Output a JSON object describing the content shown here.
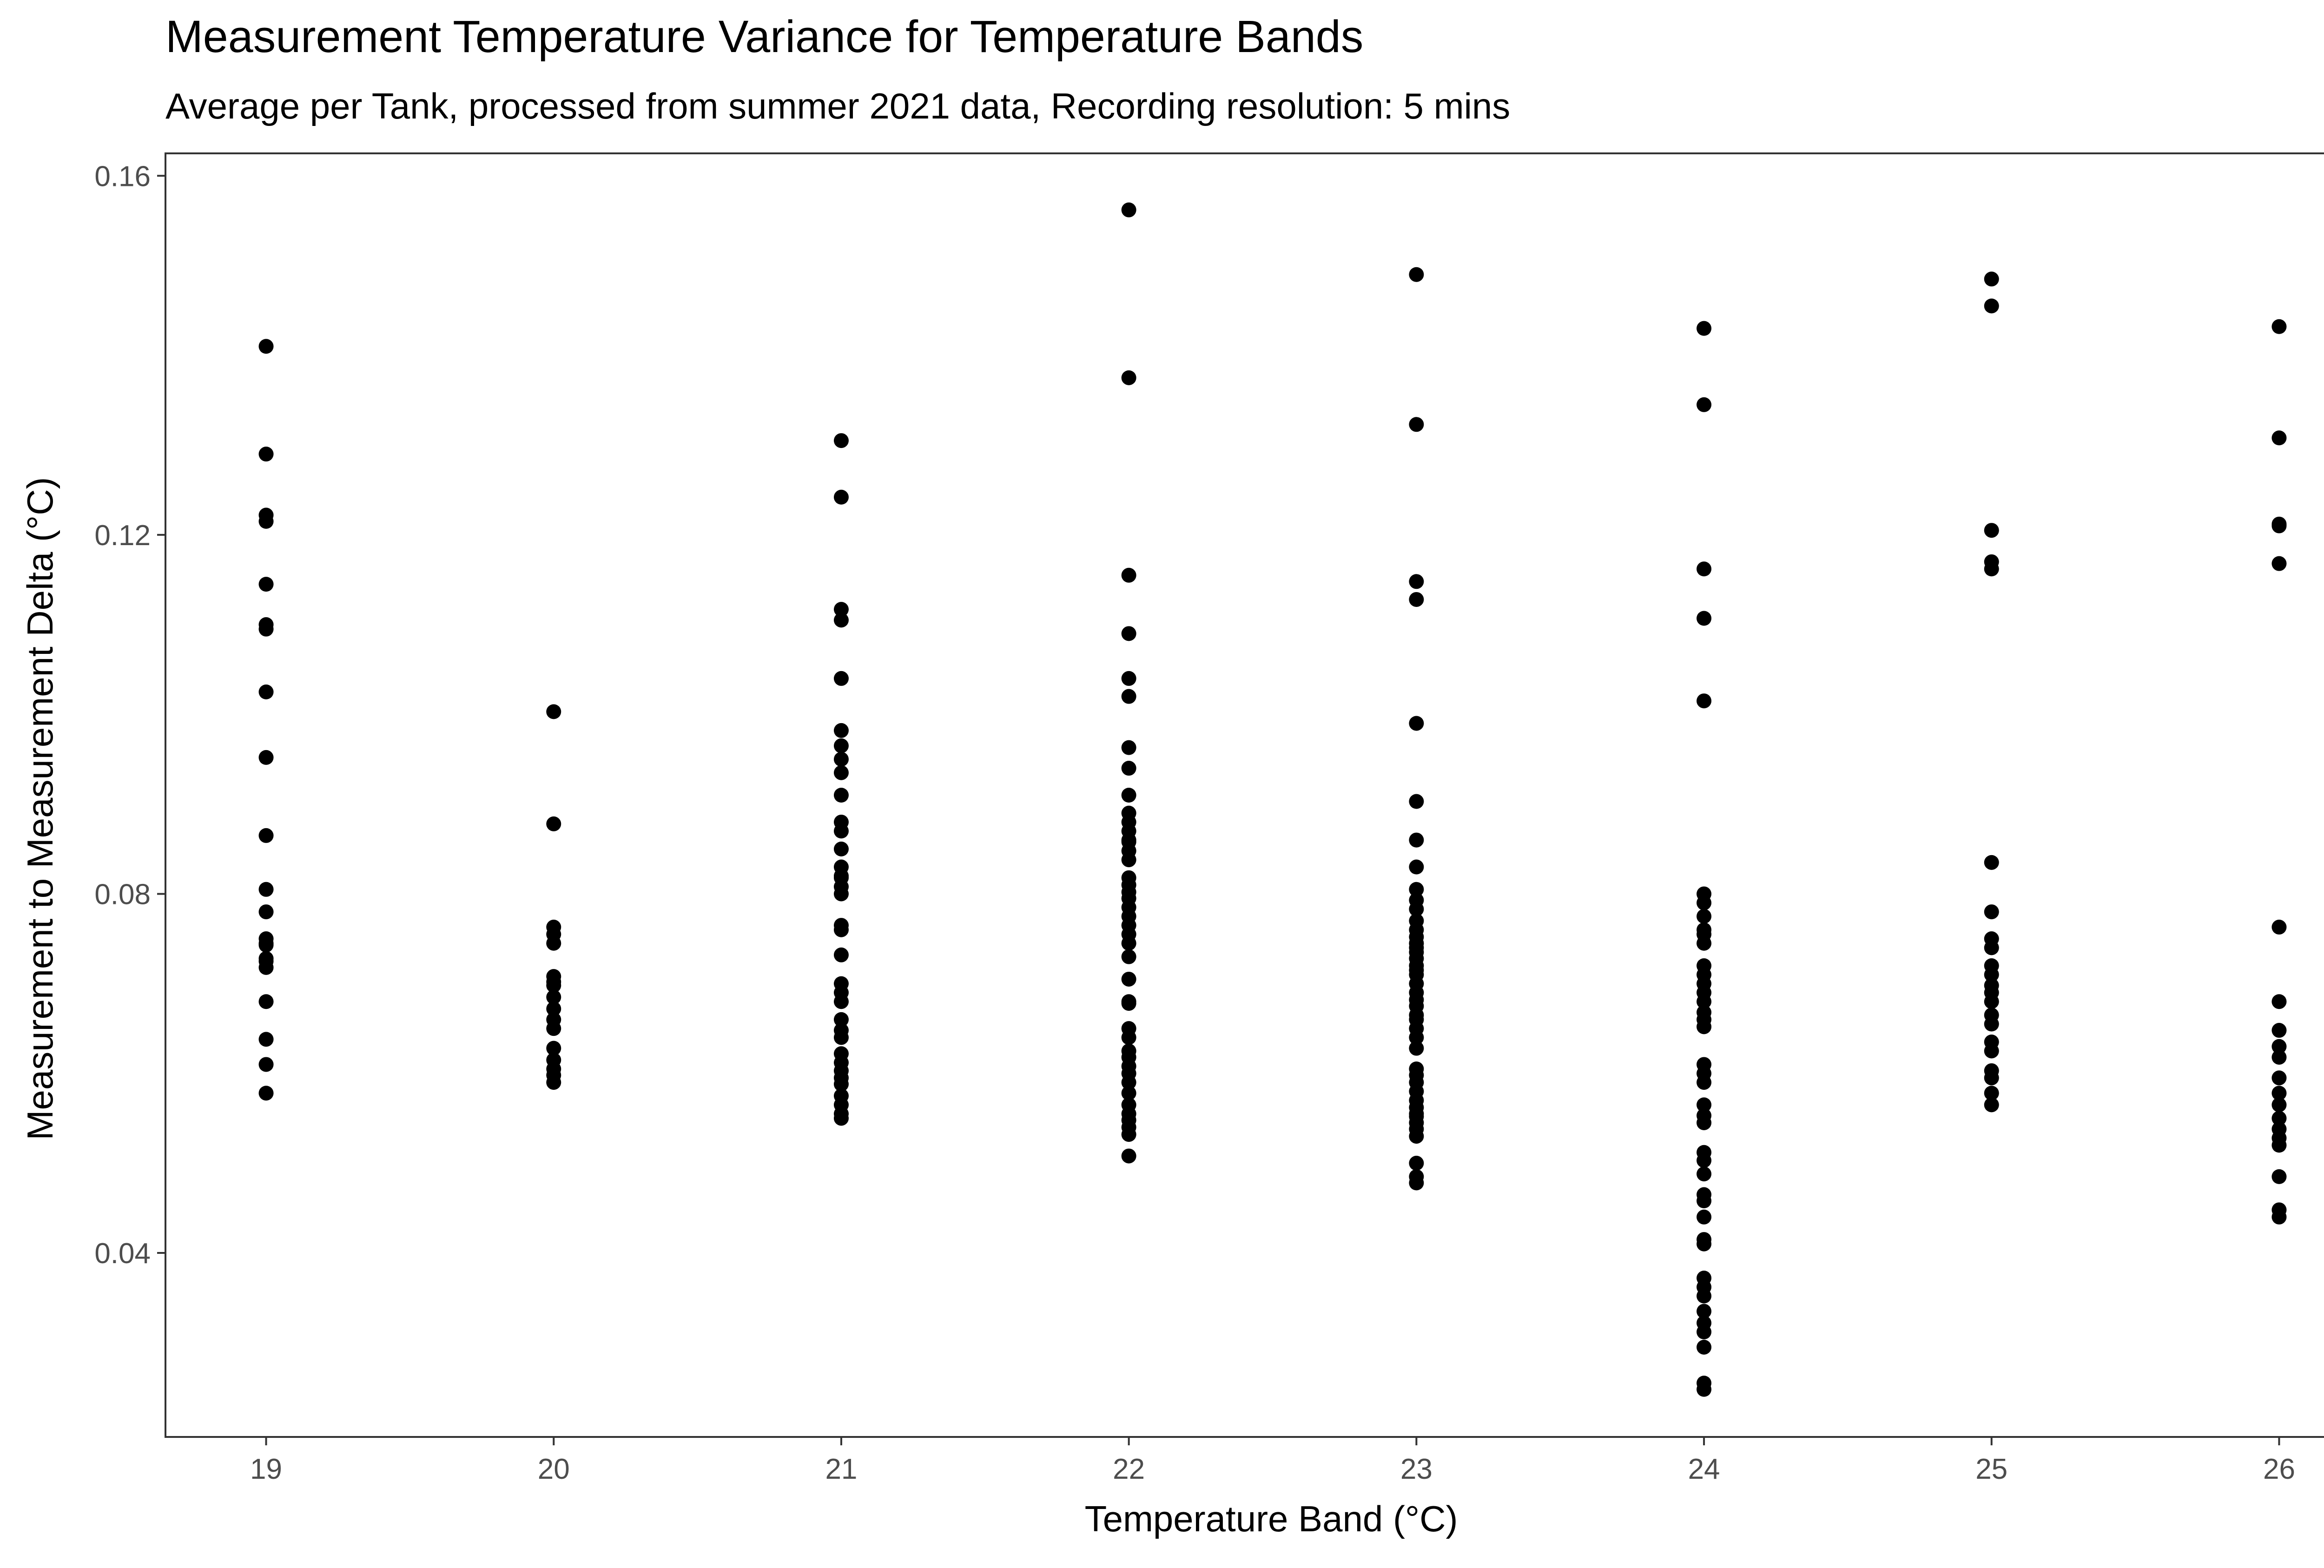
{
  "chart_data": {
    "type": "scatter",
    "title": "Measurement Temperature Variance for Temperature Bands",
    "subtitle": "Average per Tank, processed from summer 2021 data, Recording resolution: 5 mins",
    "xlabel": "Temperature Band (°C)",
    "ylabel": "Measurement to Measurement Delta (°C)",
    "xlim": [
      18.65,
      26.35
    ],
    "ylim": [
      0.0195,
      0.1625
    ],
    "x_ticks": [
      19,
      20,
      21,
      22,
      23,
      24,
      25,
      26
    ],
    "y_ticks": [
      0.04,
      0.08,
      0.12,
      0.16
    ],
    "y_tick_labels": [
      "0.04",
      "0.08",
      "0.12",
      "0.16"
    ],
    "x_tick_labels": [
      "19",
      "20",
      "21",
      "22",
      "23",
      "24",
      "25",
      "26"
    ],
    "grid": false,
    "legend": "none",
    "colors": {
      "point": "#000000",
      "panel_border": "#333333",
      "tick_text": "#4d4d4d"
    },
    "series": [
      {
        "x": [
          19,
          19,
          19,
          19,
          19,
          19,
          19,
          19,
          19,
          19,
          19,
          19,
          19,
          19,
          19,
          19,
          19,
          19,
          19,
          19,
          19,
          19
        ],
        "y": [
          0.141,
          0.129,
          0.1222,
          0.1215,
          0.1145,
          0.11,
          0.1095,
          0.1025,
          0.0952,
          0.0865,
          0.0805,
          0.078,
          0.075,
          0.0743,
          0.0725,
          0.0718,
          0.068,
          0.0638,
          0.061,
          0.0578,
          0.0728,
          0.0745
        ]
      },
      {
        "x": [
          20,
          20,
          20,
          20,
          20,
          20,
          20,
          20,
          20,
          20,
          20,
          20,
          20,
          20,
          20,
          20,
          20
        ],
        "y": [
          0.1003,
          0.0878,
          0.0763,
          0.0755,
          0.0745,
          0.0708,
          0.0698,
          0.0685,
          0.0672,
          0.066,
          0.065,
          0.0628,
          0.0615,
          0.0605,
          0.0598,
          0.059,
          0.0702
        ]
      },
      {
        "x": [
          21,
          21,
          21,
          21,
          21,
          21,
          21,
          21,
          21,
          21,
          21,
          21,
          21,
          21,
          21,
          21,
          21,
          21,
          21,
          21,
          21,
          21,
          21,
          21,
          21,
          21,
          21,
          21,
          21,
          21,
          21,
          21,
          21,
          21,
          21,
          21
        ],
        "y": [
          0.1305,
          0.1242,
          0.1117,
          0.1105,
          0.104,
          0.0982,
          0.0965,
          0.095,
          0.0935,
          0.091,
          0.088,
          0.087,
          0.085,
          0.083,
          0.0818,
          0.0808,
          0.08,
          0.0765,
          0.076,
          0.0732,
          0.07,
          0.068,
          0.066,
          0.0648,
          0.064,
          0.0612,
          0.0603,
          0.0595,
          0.0588,
          0.0575,
          0.0565,
          0.0555,
          0.055,
          0.082,
          0.069,
          0.0622
        ]
      },
      {
        "x": [
          22,
          22,
          22,
          22,
          22,
          22,
          22,
          22,
          22,
          22,
          22,
          22,
          22,
          22,
          22,
          22,
          22,
          22,
          22,
          22,
          22,
          22,
          22,
          22,
          22,
          22,
          22,
          22,
          22,
          22,
          22,
          22,
          22,
          22,
          22,
          22,
          22,
          22,
          22,
          22,
          22,
          22,
          22
        ],
        "y": [
          0.1562,
          0.1375,
          0.1155,
          0.109,
          0.104,
          0.102,
          0.0963,
          0.094,
          0.091,
          0.089,
          0.088,
          0.087,
          0.0858,
          0.0848,
          0.0838,
          0.0818,
          0.081,
          0.0795,
          0.0785,
          0.0775,
          0.0765,
          0.0755,
          0.0745,
          0.073,
          0.0705,
          0.0678,
          0.065,
          0.064,
          0.0625,
          0.0618,
          0.0608,
          0.059,
          0.0578,
          0.0565,
          0.0555,
          0.0548,
          0.054,
          0.0532,
          0.0508,
          0.086,
          0.0802,
          0.068,
          0.06
        ]
      },
      {
        "x": [
          23,
          23,
          23,
          23,
          23,
          23,
          23,
          23,
          23,
          23,
          23,
          23,
          23,
          23,
          23,
          23,
          23,
          23,
          23,
          23,
          23,
          23,
          23,
          23,
          23,
          23,
          23,
          23,
          23,
          23,
          23,
          23,
          23,
          23,
          23,
          23,
          23,
          23,
          23,
          23,
          23,
          23,
          23,
          23
        ],
        "y": [
          0.149,
          0.1323,
          0.1148,
          0.1128,
          0.099,
          0.0903,
          0.086,
          0.083,
          0.0805,
          0.0793,
          0.0783,
          0.077,
          0.076,
          0.0752,
          0.0745,
          0.0735,
          0.0728,
          0.072,
          0.071,
          0.07,
          0.069,
          0.0675,
          0.0665,
          0.065,
          0.064,
          0.0605,
          0.0598,
          0.059,
          0.057,
          0.0562,
          0.0552,
          0.0545,
          0.0538,
          0.053,
          0.05,
          0.0485,
          0.0478,
          0.0715,
          0.066,
          0.058,
          0.0555,
          0.074,
          0.0682,
          0.0628
        ]
      },
      {
        "x": [
          24,
          24,
          24,
          24,
          24,
          24,
          24,
          24,
          24,
          24,
          24,
          24,
          24,
          24,
          24,
          24,
          24,
          24,
          24,
          24,
          24,
          24,
          24,
          24,
          24,
          24,
          24,
          24,
          24,
          24,
          24,
          24,
          24,
          24,
          24,
          24,
          24,
          24,
          24,
          24,
          24,
          24
        ],
        "y": [
          0.143,
          0.1345,
          0.1162,
          0.1107,
          0.1015,
          0.08,
          0.079,
          0.0775,
          0.076,
          0.0755,
          0.0745,
          0.072,
          0.071,
          0.07,
          0.069,
          0.068,
          0.0668,
          0.066,
          0.0652,
          0.061,
          0.06,
          0.059,
          0.0565,
          0.0553,
          0.0545,
          0.0512,
          0.0503,
          0.0488,
          0.0465,
          0.0458,
          0.044,
          0.0415,
          0.041,
          0.0372,
          0.0362,
          0.0352,
          0.0335,
          0.0322,
          0.0312,
          0.0295,
          0.0255,
          0.0248
        ]
      },
      {
        "x": [
          25,
          25,
          25,
          25,
          25,
          25,
          25,
          25,
          25,
          25,
          25,
          25,
          25,
          25,
          25,
          25,
          25,
          25,
          25,
          25,
          25,
          25
        ],
        "y": [
          0.1485,
          0.1455,
          0.1205,
          0.117,
          0.1162,
          0.0835,
          0.078,
          0.075,
          0.074,
          0.072,
          0.071,
          0.0698,
          0.069,
          0.068,
          0.0665,
          0.0655,
          0.0635,
          0.0625,
          0.0603,
          0.0595,
          0.0578,
          0.0565
        ]
      },
      {
        "x": [
          26,
          26,
          26,
          26,
          26,
          26,
          26,
          26,
          26,
          26,
          26,
          26,
          26,
          26,
          26,
          26,
          26,
          26,
          26,
          26
        ],
        "y": [
          0.1432,
          0.1308,
          0.1212,
          0.121,
          0.1168,
          0.0763,
          0.068,
          0.0648,
          0.063,
          0.0618,
          0.0595,
          0.0578,
          0.0565,
          0.055,
          0.0538,
          0.0528,
          0.052,
          0.0485,
          0.0448,
          0.044
        ]
      }
    ]
  }
}
